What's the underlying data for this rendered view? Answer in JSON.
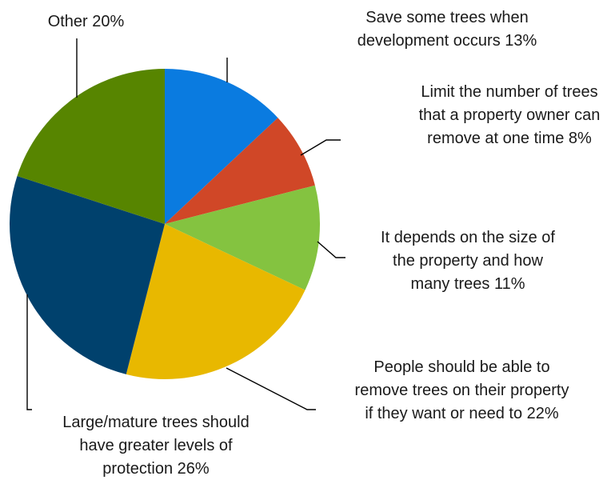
{
  "chart_data": {
    "type": "pie",
    "title": "",
    "slices": [
      {
        "lines": [
          "Save some trees when",
          "development occurs 13%"
        ],
        "value": 13,
        "color": "#0a7be0"
      },
      {
        "lines": [
          "Limit the number of trees",
          "that a property owner can",
          "remove at one time 8%"
        ],
        "value": 8,
        "color": "#d04727"
      },
      {
        "lines": [
          "It depends on the size of",
          "the property and how",
          "many trees 11%"
        ],
        "value": 11,
        "color": "#84c340"
      },
      {
        "lines": [
          "People should be able to",
          "remove trees on their property",
          "if they want or need to 22%"
        ],
        "value": 22,
        "color": "#e8b800"
      },
      {
        "lines": [
          "Large/mature trees should",
          "have greater levels of",
          "protection 26%"
        ],
        "value": 26,
        "color": "#00416d"
      },
      {
        "lines": [
          "Other 20%"
        ],
        "value": 20,
        "color": "#578500"
      }
    ]
  }
}
